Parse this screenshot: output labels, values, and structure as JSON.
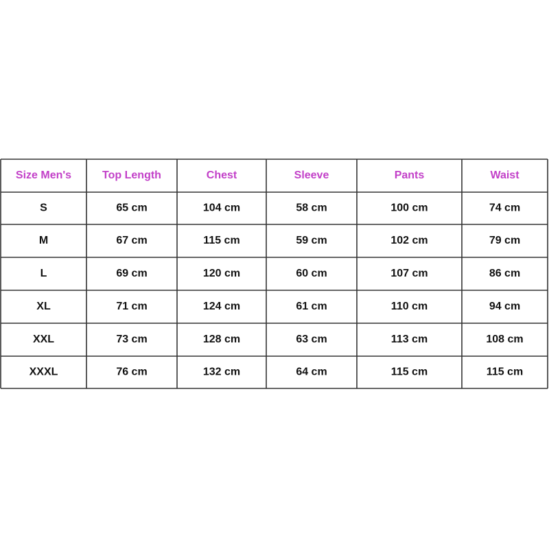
{
  "table": {
    "header": [
      "Size Men's",
      "Top Length",
      "Chest",
      "Sleeve",
      "Pants",
      "Waist"
    ],
    "rows": [
      [
        "S",
        "65 cm",
        "104 cm",
        "58 cm",
        "100 cm",
        "74 cm"
      ],
      [
        "M",
        "67 cm",
        "115 cm",
        "59 cm",
        "102 cm",
        "79 cm"
      ],
      [
        "L",
        "69 cm",
        "120 cm",
        "60 cm",
        "107 cm",
        "86 cm"
      ],
      [
        "XL",
        "71 cm",
        "124 cm",
        "61 cm",
        "110 cm",
        "94 cm"
      ],
      [
        "XXL",
        "73 cm",
        "128 cm",
        "63 cm",
        "113 cm",
        "108 cm"
      ],
      [
        "XXXL",
        "76 cm",
        "132 cm",
        "64 cm",
        "115 cm",
        "115 cm"
      ]
    ]
  }
}
